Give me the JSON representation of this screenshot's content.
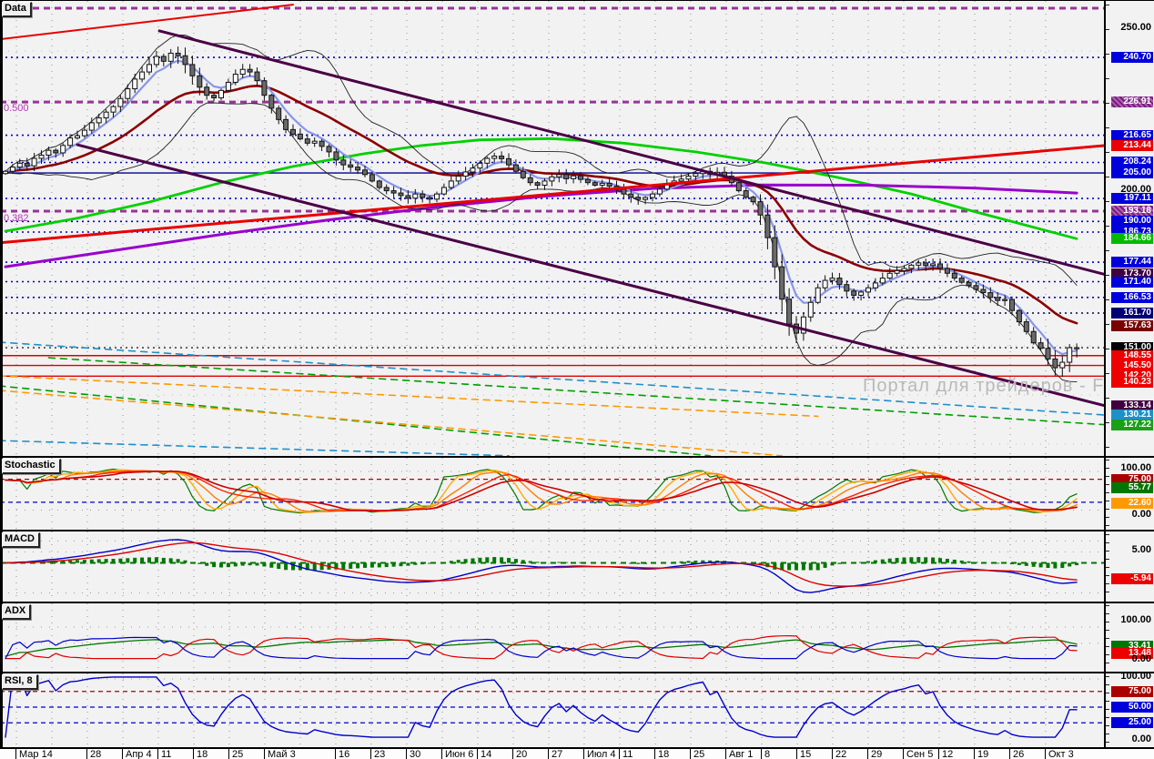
{
  "app": {
    "watermark": "Портал для трейдеров - ForTrader.ru"
  },
  "panels": {
    "main": {
      "tab": "Data"
    },
    "stoch": {
      "tab": "Stochastic"
    },
    "macd": {
      "tab": "MACD"
    },
    "adx": {
      "tab": "ADX"
    },
    "rsi": {
      "tab": "RSI, 8"
    }
  },
  "chart_data": {
    "type": "candlestick+indicators",
    "title": "Daily price chart with Stochastic, MACD, ADX and RSI(8) panels",
    "x_axis": {
      "unit": "weeks",
      "labels": [
        [
          "Мар 14",
          0
        ],
        [
          "28",
          2
        ],
        [
          "Апр 4",
          3
        ],
        [
          "11",
          4
        ],
        [
          "18",
          5
        ],
        [
          "25",
          6
        ],
        [
          "Май 3",
          7
        ],
        [
          "16",
          9
        ],
        [
          "23",
          10
        ],
        [
          "30",
          11
        ],
        [
          "Июн 6",
          12
        ],
        [
          "14",
          13
        ],
        [
          "20",
          14
        ],
        [
          "27",
          15
        ],
        [
          "Июл 4",
          16
        ],
        [
          "11",
          17
        ],
        [
          "18",
          18
        ],
        [
          "25",
          19
        ],
        [
          "Авг 1",
          20
        ],
        [
          "8",
          21
        ],
        [
          "15",
          22
        ],
        [
          "22",
          23
        ],
        [
          "29",
          24
        ],
        [
          "Сен 5",
          25
        ],
        [
          "12",
          26
        ],
        [
          "19",
          27
        ],
        [
          "26",
          28
        ],
        [
          "Окт 3",
          29
        ]
      ]
    },
    "price_axis": {
      "visible_min": 117.5,
      "visible_max": 258.0,
      "last_price": 151.0
    },
    "candles": {
      "note": "daily closes, March 14 — October 3",
      "closes": [
        205.5,
        206.8,
        208.0,
        207.2,
        209.5,
        210.5,
        212.0,
        211.2,
        213.5,
        215.8,
        216.5,
        218.2,
        220.5,
        222.0,
        223.8,
        225.5,
        228.0,
        231.0,
        234.0,
        236.2,
        238.5,
        241.0,
        239.5,
        242.0,
        241.2,
        238.5,
        235.0,
        231.5,
        229.0,
        228.2,
        230.5,
        233.0,
        235.5,
        237.0,
        236.2,
        233.5,
        229.0,
        225.0,
        221.5,
        218.4,
        217.0,
        215.5,
        214.2,
        214.8,
        213.2,
        211.5,
        209.0,
        207.5,
        206.8,
        205.9,
        204.5,
        202.5,
        200.5,
        199.5,
        198.8,
        198.0,
        197.2,
        198.5,
        197.4,
        196.9,
        198.5,
        200.5,
        202.5,
        204.0,
        205.3,
        206.5,
        208.0,
        209.5,
        210.2,
        209.4,
        207.5,
        205.5,
        203.5,
        202.0,
        201.2,
        202.5,
        203.8,
        204.5,
        203.2,
        204.1,
        203.0,
        202.0,
        201.2,
        201.8,
        200.9,
        200.0,
        198.5,
        197.5,
        196.8,
        197.4,
        198.5,
        200.0,
        201.5,
        202.5,
        203.1,
        204.0,
        204.8,
        205.5,
        204.6,
        205.2,
        204.0,
        202.0,
        199.5,
        197.5,
        196.1,
        192.0,
        185.0,
        176.0,
        166.0,
        158.3,
        155.5,
        160.5,
        165.0,
        169.5,
        171.8,
        172.5,
        170.5,
        168.5,
        167.2,
        168.2,
        169.5,
        171.0,
        172.5,
        174.0,
        174.8,
        175.5,
        176.5,
        177.2,
        176.4,
        176.9,
        175.5,
        174.0,
        172.5,
        171.2,
        170.2,
        169.0,
        168.0,
        166.5,
        165.6,
        165.9,
        162.5,
        159.0,
        156.0,
        152.5,
        150.8,
        147.5,
        144.8,
        146.5,
        151.0,
        151.0
      ]
    },
    "overlays": {
      "ma_green": [
        [
          0,
          187
        ],
        [
          10,
          191
        ],
        [
          20,
          196
        ],
        [
          30,
          202
        ],
        [
          40,
          207
        ],
        [
          50,
          211
        ],
        [
          58,
          213.5
        ],
        [
          66,
          215.2
        ],
        [
          76,
          215.6
        ],
        [
          86,
          214.2
        ],
        [
          96,
          211.5
        ],
        [
          106,
          208
        ],
        [
          116,
          203.5
        ],
        [
          126,
          198.5
        ],
        [
          134,
          193.5
        ],
        [
          142,
          188.8
        ],
        [
          149,
          184.66
        ]
      ],
      "ma_violet": [
        [
          0,
          176
        ],
        [
          15,
          181
        ],
        [
          30,
          186
        ],
        [
          45,
          190.5
        ],
        [
          60,
          194.5
        ],
        [
          75,
          197.8
        ],
        [
          90,
          200.2
        ],
        [
          105,
          201.3
        ],
        [
          120,
          201.2
        ],
        [
          135,
          200.3
        ],
        [
          149,
          198.8
        ]
      ],
      "trendlines": [
        {
          "name": "red-ascending-trendline",
          "pts": [
            [
              -0.9,
              183.4
            ],
            [
              152.8,
              213.44
            ]
          ],
          "color": "#e80000",
          "w": 3
        },
        {
          "name": "red-upper-trendline",
          "pts": [
            [
              -0.9,
              246.3
            ],
            [
              40,
              257.0
            ]
          ],
          "color": "#e80000",
          "w": 2
        },
        {
          "name": "purple-channel-upper",
          "pts": [
            [
              21.4,
              248.9
            ],
            [
              152.8,
              173.7
            ]
          ],
          "color": "#4a0045",
          "w": 3
        },
        {
          "name": "purple-channel-lower",
          "pts": [
            [
              10,
              213.7
            ],
            [
              152.8,
              133.14
            ]
          ],
          "color": "#4a0045",
          "w": 3
        }
      ],
      "dashed_lines": [
        {
          "name": "steelblue-dashed-upper",
          "pts": [
            [
              -0.9,
              152.7
            ],
            [
              152.8,
              130.21
            ]
          ],
          "color": "#1e90cc"
        },
        {
          "name": "green-dashed-upper",
          "pts": [
            [
              6,
              147.9
            ],
            [
              152.8,
              127.22
            ]
          ],
          "color": "#00a000"
        },
        {
          "name": "green-dashed-lower",
          "pts": [
            [
              -0.9,
              139.2
            ],
            [
              98,
              117.6
            ]
          ],
          "color": "#00a000"
        },
        {
          "name": "orange-dashed-upper",
          "pts": [
            [
              -0.9,
              142.3
            ],
            [
              113,
              129.8
            ]
          ],
          "color": "#ff9900"
        },
        {
          "name": "orange-dashed-lower",
          "pts": [
            [
              -0.9,
              137.8
            ],
            [
              108,
              117.6
            ]
          ],
          "color": "#ff9900"
        },
        {
          "name": "steelblue-dashed-lower",
          "pts": [
            [
              -0.9,
              122.3
            ],
            [
              70,
              117.6
            ]
          ],
          "color": "#1e90cc"
        }
      ],
      "levels": [
        {
          "p": 255.9,
          "color": "#993399",
          "style": "fib"
        },
        {
          "p": 240.7,
          "color": "#0000cc",
          "style": "dotted"
        },
        {
          "p": 226.91,
          "color": "#993399",
          "style": "fib",
          "label": "0.500"
        },
        {
          "p": 216.65,
          "color": "#0000cc",
          "style": "dotted"
        },
        {
          "p": 208.24,
          "color": "#0000cc",
          "style": "dotted"
        },
        {
          "p": 205.0,
          "color": "#000099",
          "style": "solid"
        },
        {
          "p": 197.11,
          "color": "#0000cc",
          "style": "dotted"
        },
        {
          "p": 193.18,
          "color": "#993399",
          "style": "fib",
          "label": "0.382"
        },
        {
          "p": 190.0,
          "color": "#0000cc",
          "style": "dotted"
        },
        {
          "p": 186.73,
          "color": "#0000cc",
          "style": "dotted"
        },
        {
          "p": 177.44,
          "color": "#0000cc",
          "style": "dotted"
        },
        {
          "p": 171.4,
          "color": "#0000cc",
          "style": "dotted"
        },
        {
          "p": 166.53,
          "color": "#0000cc",
          "style": "dotted"
        },
        {
          "p": 161.7,
          "color": "#000066",
          "style": "dotted"
        },
        {
          "p": 151.0,
          "color": "#444444",
          "style": "dotted"
        },
        {
          "p": 148.55,
          "color": "#dd0000",
          "style": "solid"
        },
        {
          "p": 145.5,
          "color": "#dd0000",
          "style": "solid"
        },
        {
          "p": 142.2,
          "color": "#dd0000",
          "style": "solid"
        }
      ]
    },
    "indicators": {
      "stoch": {
        "refs": [
          {
            "v": 75,
            "color": "#aa0000"
          },
          {
            "v": 25,
            "color": "#0000cc"
          }
        ],
        "dotrows": [
          92,
          8
        ]
      },
      "macd": {
        "refs": [],
        "dotrows": [
          8,
          4,
          -11
        ]
      },
      "adx": {
        "refs": [],
        "dotrows": [
          82,
          40
        ]
      },
      "rsi": {
        "refs": [
          {
            "v": 75,
            "color": "#aa0000"
          },
          {
            "v": 50,
            "color": "#0000cc"
          },
          {
            "v": 25,
            "color": "#0000cc"
          }
        ],
        "dotrows": [
          95
        ]
      }
    },
    "scale_labels": {
      "main": [
        {
          "text": "250.00",
          "v": 250.0,
          "plain": true
        },
        {
          "text": "240.70",
          "v": 240.7,
          "bg": "#0000dd"
        },
        {
          "text": "226.91",
          "v": 226.91,
          "hatch": true
        },
        {
          "text": "216.65",
          "v": 216.65,
          "bg": "#0000dd"
        },
        {
          "text": "213.44",
          "v": 213.44,
          "bg": "#ee0000"
        },
        {
          "text": "208.24",
          "v": 208.24,
          "bg": "#0000dd"
        },
        {
          "text": "205.00",
          "v": 205.0,
          "bg": "#0000dd"
        },
        {
          "text": "200.00",
          "v": 200.0,
          "plain": true
        },
        {
          "text": "197.11",
          "v": 197.11,
          "bg": "#0000dd"
        },
        {
          "text": "193.18",
          "v": 193.18,
          "hatch": true
        },
        {
          "text": "190.00",
          "v": 190.0,
          "bg": "#0000dd"
        },
        {
          "text": "186.73",
          "v": 186.73,
          "bg": "#0000dd"
        },
        {
          "text": "184.66",
          "v": 184.66,
          "bg": "#00bb00"
        },
        {
          "text": "177.44",
          "v": 177.44,
          "bg": "#0000dd"
        },
        {
          "text": "173.70",
          "v": 173.7,
          "bg": "#400040"
        },
        {
          "text": "171.40",
          "v": 171.4,
          "bg": "#0000dd"
        },
        {
          "text": "166.53",
          "v": 166.53,
          "bg": "#0000dd"
        },
        {
          "text": "161.70",
          "v": 161.7,
          "bg": "#000075"
        },
        {
          "text": "157.63",
          "v": 157.63,
          "bg": "#7a0000"
        },
        {
          "text": "151.00",
          "v": 151.0,
          "bg": "#000000"
        },
        {
          "text": "148.55",
          "v": 148.55,
          "bg": "#ee0000"
        },
        {
          "text": "145.50",
          "v": 145.5,
          "bg": "#ee0000"
        },
        {
          "text": "142.20",
          "v": 142.2,
          "bg": "#ee0000"
        },
        {
          "text": "140.23",
          "v": 140.23,
          "bg": "#ee0000"
        },
        {
          "text": "133.14",
          "v": 133.14,
          "bg": "#400040"
        },
        {
          "text": "130.21",
          "v": 130.21,
          "bg": "#1e90c8"
        },
        {
          "text": "127.22",
          "v": 127.22,
          "bg": "#18a018"
        }
      ],
      "stoch": [
        {
          "text": "100.00",
          "v": 100,
          "plain": true
        },
        {
          "text": "75.00",
          "v": 75,
          "bg": "#aa0000"
        },
        {
          "text": "55.77",
          "v": 55.77,
          "bg": "#007700"
        },
        {
          "text": "22.60",
          "v": 22.6,
          "bg": "#ff9900"
        },
        {
          "text": "0.00",
          "v": 0,
          "plain": true
        }
      ],
      "macd": [
        {
          "text": "5.00",
          "v": 5,
          "plain": true
        },
        {
          "text": "-5.94",
          "v": -5.94,
          "bg": "#ee0000"
        }
      ],
      "adx": [
        {
          "text": "100.00",
          "v": 100,
          "plain": true
        },
        {
          "text": "33.41",
          "v": 33.41,
          "bg": "#007700"
        },
        {
          "text": "13.48",
          "v": 13.48,
          "bg": "#ee0000"
        },
        {
          "text": "0.00",
          "v": 0,
          "plain": true
        }
      ],
      "rsi": [
        {
          "text": "100.00",
          "v": 100,
          "plain": true
        },
        {
          "text": "75.00",
          "v": 75,
          "bg": "#aa0000"
        },
        {
          "text": "50.00",
          "v": 50,
          "bg": "#0000dd"
        },
        {
          "text": "25.00",
          "v": 25,
          "bg": "#0000dd"
        },
        {
          "text": "0.00",
          "v": 0,
          "plain": true
        }
      ]
    }
  }
}
